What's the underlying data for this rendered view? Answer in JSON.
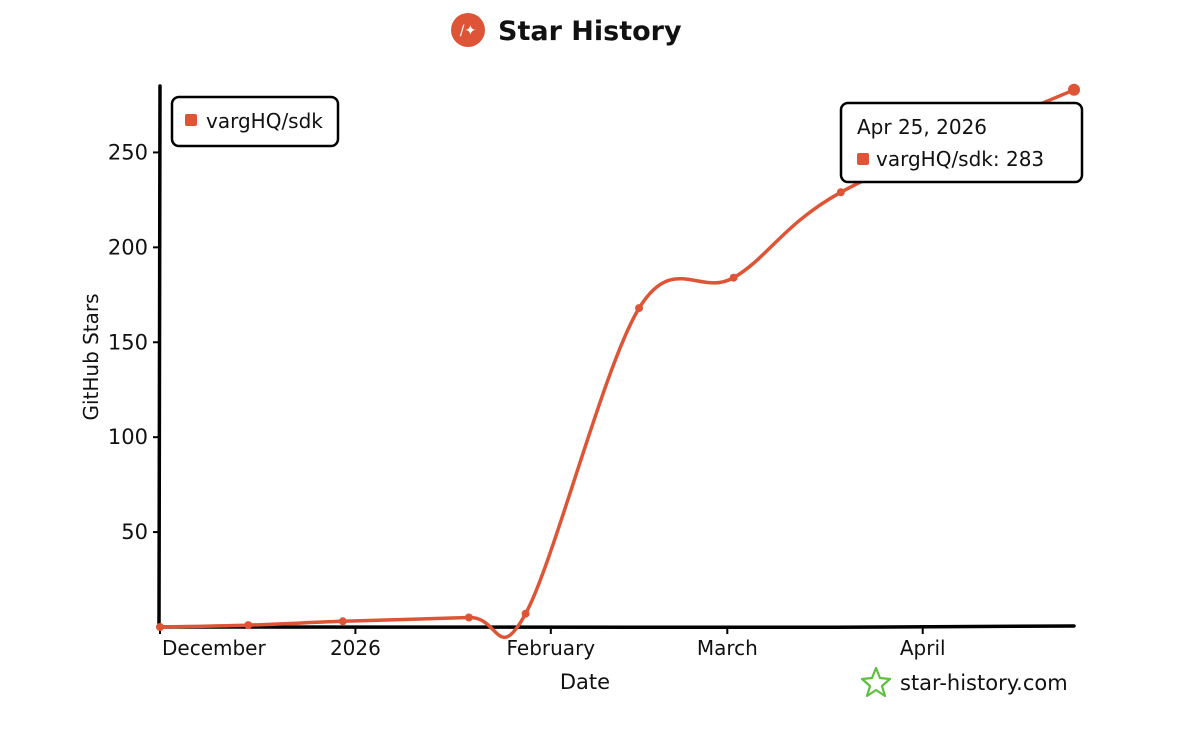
{
  "header": {
    "title": "Star History",
    "logo_icon": "star-history-logo-icon"
  },
  "watermark": {
    "text": "star-history.com",
    "icon": "star-outline-icon",
    "icon_color": "#5fbf3f"
  },
  "colors": {
    "series": "#dd5536",
    "axis": "#000000",
    "text": "#111111"
  },
  "chart_data": {
    "type": "line",
    "title": "Star History",
    "xlabel": "Date",
    "ylabel": "GitHub Stars",
    "grid": false,
    "legend": {
      "position": "top-left",
      "entries": [
        "vargHQ/sdk"
      ]
    },
    "x_ticks": [
      {
        "date": "2025-12-01",
        "label": "December"
      },
      {
        "date": "2026-01-01",
        "label": "2026"
      },
      {
        "date": "2026-02-01",
        "label": "February"
      },
      {
        "date": "2026-03-01",
        "label": "March"
      },
      {
        "date": "2026-04-01",
        "label": "April"
      }
    ],
    "y_ticks": [
      50,
      100,
      150,
      200,
      250
    ],
    "xlim": [
      "2025-12-01",
      "2026-04-25"
    ],
    "ylim": [
      0,
      285
    ],
    "series": [
      {
        "name": "vargHQ/sdk",
        "color": "#dd5536",
        "points": [
          {
            "x": "2025-12-01",
            "y": 0
          },
          {
            "x": "2025-12-15",
            "y": 1
          },
          {
            "x": "2025-12-30",
            "y": 3
          },
          {
            "x": "2026-01-19",
            "y": 5
          },
          {
            "x": "2026-01-28",
            "y": 7
          },
          {
            "x": "2026-02-15",
            "y": 168
          },
          {
            "x": "2026-03-02",
            "y": 184
          },
          {
            "x": "2026-03-19",
            "y": 229
          },
          {
            "x": "2026-04-25",
            "y": 283
          }
        ]
      }
    ],
    "tooltip": {
      "date_label": "Apr 25, 2026",
      "series_name": "vargHQ/sdk",
      "value": "283",
      "position": "top-right"
    }
  }
}
